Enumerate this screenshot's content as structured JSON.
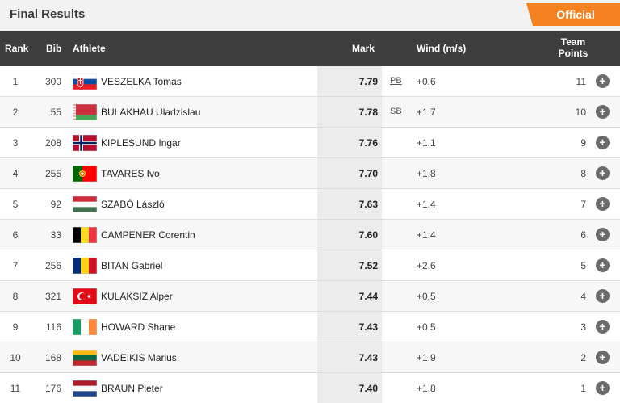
{
  "page": {
    "title": "Final Results",
    "status": "Official"
  },
  "columns": {
    "rank": "Rank",
    "bib": "Bib",
    "athlete": "Athlete",
    "mark": "Mark",
    "wind": "Wind (m/s)",
    "team_points": "Team Points"
  },
  "results": [
    {
      "rank": "1",
      "bib": "300",
      "country": "SVK",
      "flag": "slovakia-flag-icon",
      "athlete": "VESZELKA Tomas",
      "mark": "7.79",
      "record": "PB",
      "wind": "+0.6",
      "points": "11"
    },
    {
      "rank": "2",
      "bib": "55",
      "country": "BLR",
      "flag": "belarus-flag-icon",
      "athlete": "BULAKHAU Uladzislau",
      "mark": "7.78",
      "record": "SB",
      "wind": "+1.7",
      "points": "10"
    },
    {
      "rank": "3",
      "bib": "208",
      "country": "NOR",
      "flag": "norway-flag-icon",
      "athlete": "KIPLESUND Ingar",
      "mark": "7.76",
      "record": "",
      "wind": "+1.1",
      "points": "9"
    },
    {
      "rank": "4",
      "bib": "255",
      "country": "POR",
      "flag": "portugal-flag-icon",
      "athlete": "TAVARES Ivo",
      "mark": "7.70",
      "record": "",
      "wind": "+1.8",
      "points": "8"
    },
    {
      "rank": "5",
      "bib": "92",
      "country": "HUN",
      "flag": "hungary-flag-icon",
      "athlete": "SZABÓ László",
      "mark": "7.63",
      "record": "",
      "wind": "+1.4",
      "points": "7"
    },
    {
      "rank": "6",
      "bib": "33",
      "country": "BEL",
      "flag": "belgium-flag-icon",
      "athlete": "CAMPENER Corentin",
      "mark": "7.60",
      "record": "",
      "wind": "+1.4",
      "points": "6"
    },
    {
      "rank": "7",
      "bib": "256",
      "country": "ROU",
      "flag": "romania-flag-icon",
      "athlete": "BITAN Gabriel",
      "mark": "7.52",
      "record": "",
      "wind": "+2.6",
      "points": "5"
    },
    {
      "rank": "8",
      "bib": "321",
      "country": "TUR",
      "flag": "turkey-flag-icon",
      "athlete": "KULAKSIZ Alper",
      "mark": "7.44",
      "record": "",
      "wind": "+0.5",
      "points": "4"
    },
    {
      "rank": "9",
      "bib": "116",
      "country": "IRL",
      "flag": "ireland-flag-icon",
      "athlete": "HOWARD Shane",
      "mark": "7.43",
      "record": "",
      "wind": "+0.5",
      "points": "3"
    },
    {
      "rank": "10",
      "bib": "168",
      "country": "LTU",
      "flag": "lithuania-flag-icon",
      "athlete": "VADEIKIS Marius",
      "mark": "7.43",
      "record": "",
      "wind": "+1.9",
      "points": "2"
    },
    {
      "rank": "11",
      "bib": "176",
      "country": "NED",
      "flag": "netherlands-flag-icon",
      "athlete": "BRAUN Pieter",
      "mark": "7.40",
      "record": "",
      "wind": "+1.8",
      "points": "1"
    }
  ],
  "expand_icon": "plus-circle-icon",
  "colors": {
    "accent": "#f58220",
    "header_bg": "#3d3d3d",
    "topbar_bg": "#f2f2f2",
    "plus_bg": "#6b6b6b"
  }
}
